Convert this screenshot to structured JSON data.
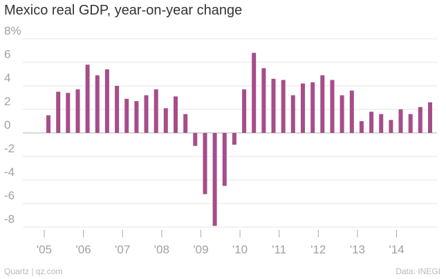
{
  "page": {
    "title": "Mexico real GDP, year-on-year change"
  },
  "footer": {
    "source_left": "Quartz | qz.com",
    "source_right": "Data: INEGI"
  },
  "colors": {
    "bar": "#a64d8a",
    "grid": "#e4e4e4",
    "zero": "#b0b0b0",
    "tick_text": "#a0a0a0"
  },
  "chart_data": {
    "type": "bar",
    "title": "Mexico real GDP, year-on-year change",
    "xlabel": "",
    "ylabel": "",
    "ylim": [
      -8,
      8
    ],
    "yticks": [
      8,
      6,
      4,
      2,
      0,
      -2,
      -4,
      -6,
      -8
    ],
    "ytick_labels": [
      "8%",
      "6",
      "4",
      "2",
      "0",
      "-2",
      "-4",
      "-6",
      "-8"
    ],
    "xtick_labels": [
      "'05",
      "'06",
      "'07",
      "'08",
      "'09",
      "'10",
      "'11",
      "'12",
      "'13",
      "'14"
    ],
    "categories": [
      "2005Q1",
      "2005Q2",
      "2005Q3",
      "2005Q4",
      "2006Q1",
      "2006Q2",
      "2006Q3",
      "2006Q4",
      "2007Q1",
      "2007Q2",
      "2007Q3",
      "2007Q4",
      "2008Q1",
      "2008Q2",
      "2008Q3",
      "2008Q4",
      "2009Q1",
      "2009Q2",
      "2009Q3",
      "2009Q4",
      "2010Q1",
      "2010Q2",
      "2010Q3",
      "2010Q4",
      "2011Q1",
      "2011Q2",
      "2011Q3",
      "2011Q4",
      "2012Q1",
      "2012Q2",
      "2012Q3",
      "2012Q4",
      "2013Q1",
      "2013Q2",
      "2013Q3",
      "2013Q4",
      "2014Q1",
      "2014Q2",
      "2014Q3",
      "2014Q4"
    ],
    "values": [
      1.5,
      3.5,
      3.4,
      3.7,
      5.8,
      4.9,
      5.4,
      4.0,
      2.9,
      2.7,
      3.2,
      3.7,
      2.1,
      3.1,
      1.6,
      -1.1,
      -5.2,
      -7.9,
      -4.5,
      -1.0,
      3.7,
      6.8,
      5.5,
      4.6,
      4.5,
      3.2,
      4.2,
      4.3,
      4.9,
      4.5,
      3.2,
      3.6,
      1.0,
      1.8,
      1.6,
      1.1,
      2.0,
      1.6,
      2.2,
      2.6
    ]
  }
}
